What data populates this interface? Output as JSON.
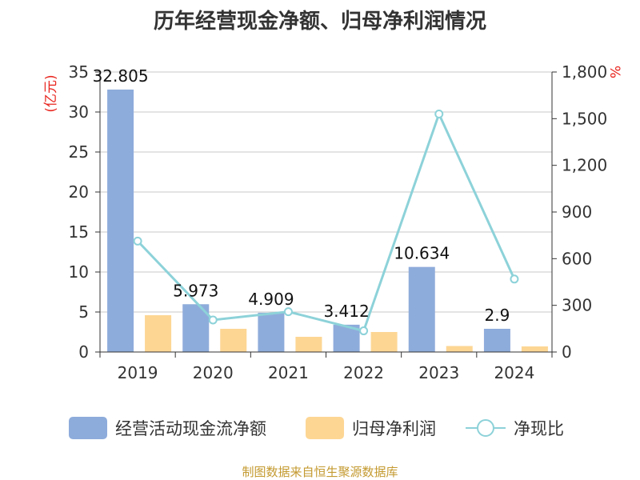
{
  "chart_data": {
    "type": "bar",
    "title": "历年经营现金净额、归母净利润情况",
    "categories": [
      "2019",
      "2020",
      "2021",
      "2022",
      "2023",
      "2024"
    ],
    "series": [
      {
        "name": "经营活动现金流净额",
        "type": "bar",
        "axis": "left",
        "color": "#8eacdb",
        "values": [
          32.805,
          5.973,
          4.909,
          3.412,
          10.634,
          2.9
        ],
        "labels": [
          "32.805",
          "5.973",
          "4.909",
          "3.412",
          "10.634",
          "2.9"
        ]
      },
      {
        "name": "归母净利润",
        "type": "bar",
        "axis": "left",
        "color": "#fdd694",
        "values": [
          4.6,
          2.9,
          1.9,
          2.5,
          0.75,
          0.7
        ]
      },
      {
        "name": "净现比",
        "type": "line",
        "axis": "right",
        "color": "#8dd2d9",
        "values": [
          713,
          206,
          259,
          136,
          1530,
          469
        ]
      }
    ],
    "y_left": {
      "unit": "(亿元)",
      "ylim": [
        0,
        35
      ],
      "ticks": [
        "0",
        "5",
        "10",
        "15",
        "20",
        "25",
        "30",
        "35"
      ]
    },
    "y_right": {
      "unit": "%",
      "ylim": [
        0,
        1800
      ],
      "ticks": [
        "0",
        "300",
        "600",
        "900",
        "1,200",
        "1,500",
        "1,800"
      ]
    },
    "grid": true,
    "legend_position": "bottom"
  },
  "source": "制图数据来自恒生聚源数据库"
}
